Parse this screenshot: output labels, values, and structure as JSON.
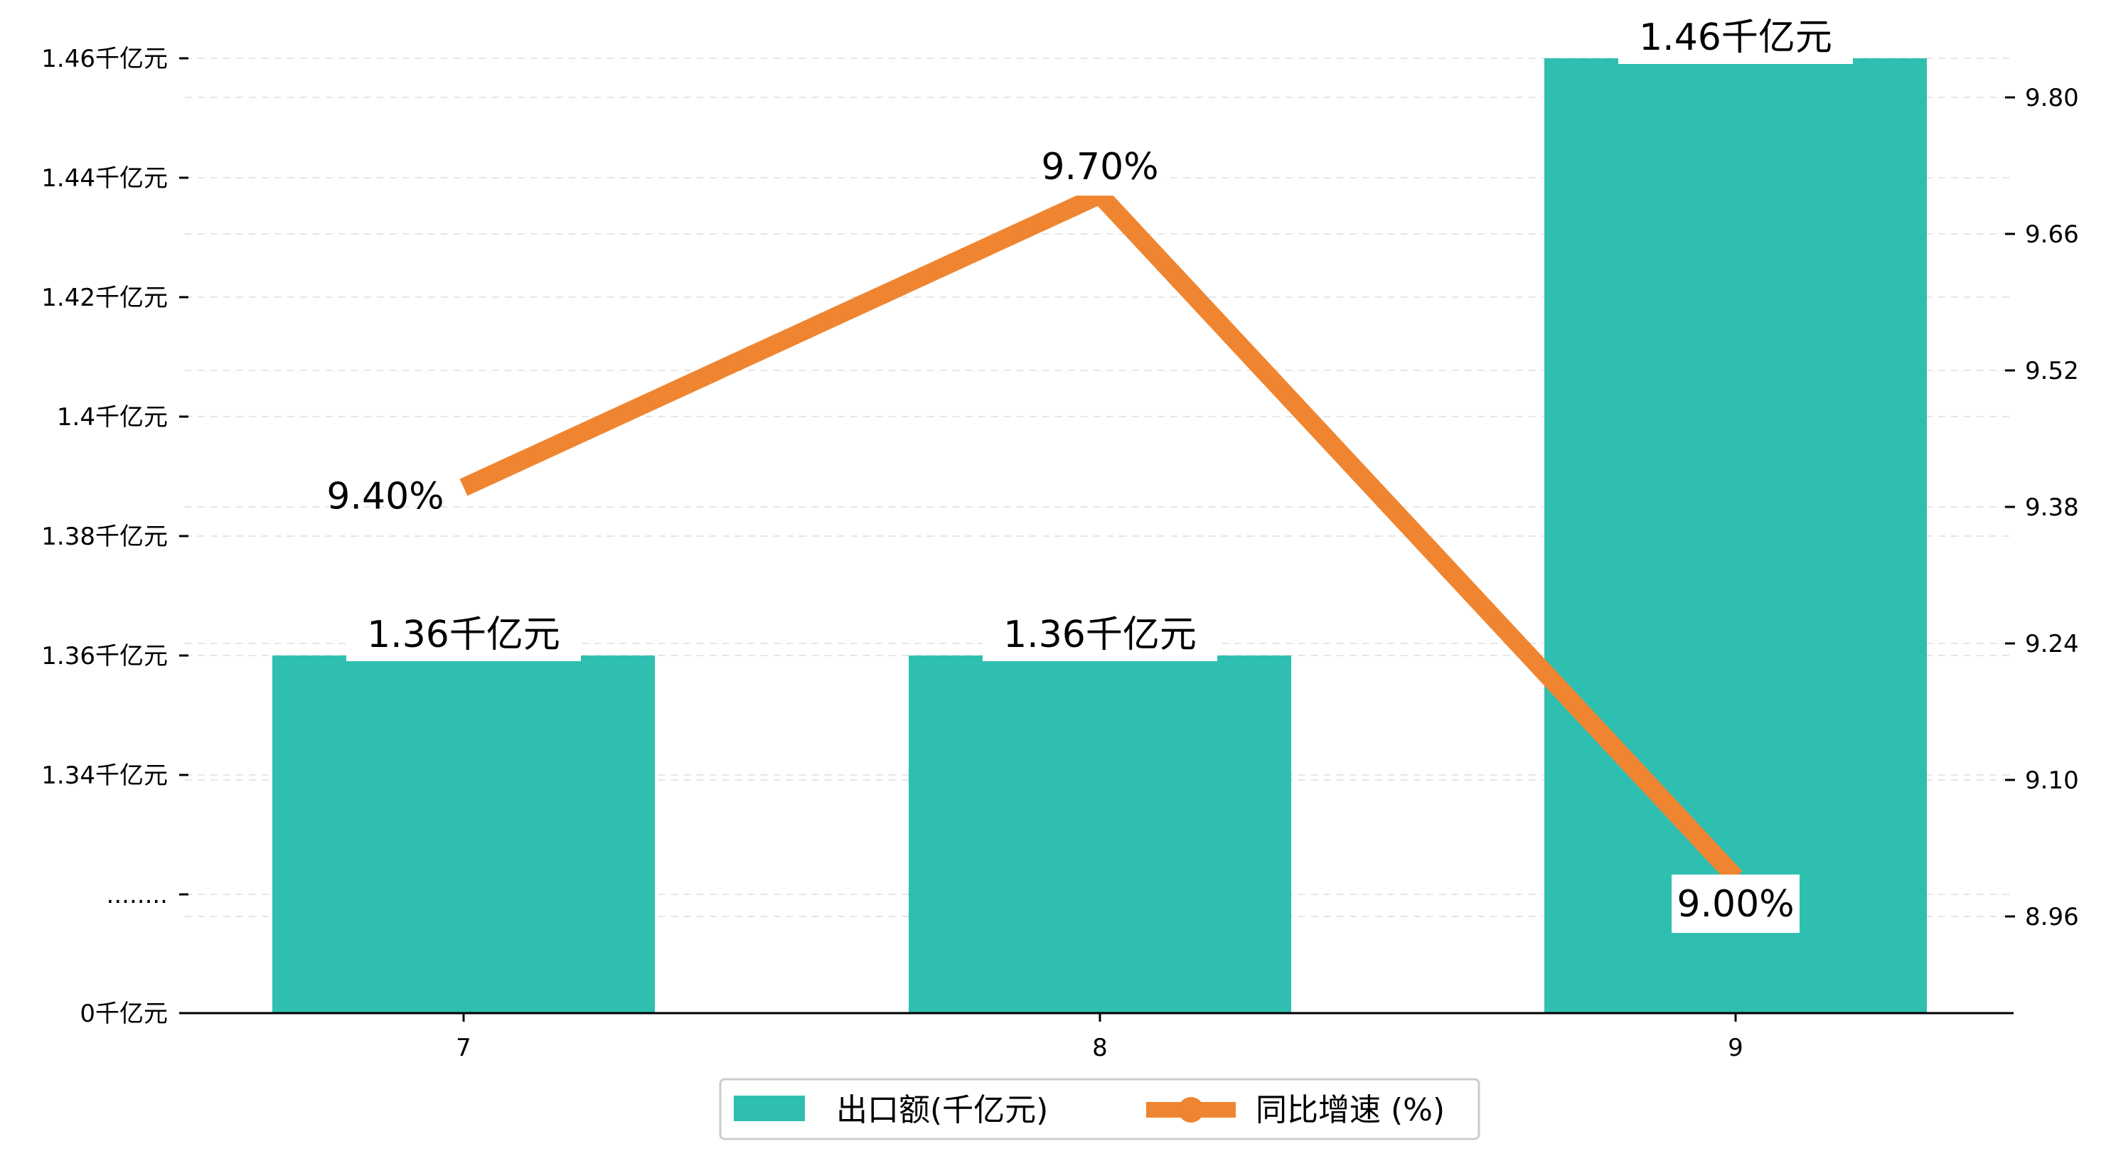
{
  "chart_data": {
    "type": "bar",
    "categories": [
      "7",
      "8",
      "9"
    ],
    "left_axis": {
      "ticks": [
        {
          "value": 0,
          "label": "0千亿元"
        },
        {
          "value": 1.32,
          "label": "........"
        },
        {
          "value": 1.34,
          "label": "1.34千亿元"
        },
        {
          "value": 1.36,
          "label": "1.36千亿元"
        },
        {
          "value": 1.38,
          "label": "1.38千亿元"
        },
        {
          "value": 1.4,
          "label": "1.4千亿元"
        },
        {
          "value": 1.42,
          "label": "1.42千亿元"
        },
        {
          "value": 1.44,
          "label": "1.44千亿元"
        },
        {
          "value": 1.46,
          "label": "1.46千亿元"
        }
      ],
      "break": true
    },
    "right_axis": {
      "ylim": [
        8.85,
        9.88
      ],
      "ticks": [
        {
          "value": 8.96,
          "label": "8.96"
        },
        {
          "value": 9.1,
          "label": "9.10"
        },
        {
          "value": 9.24,
          "label": "9.24"
        },
        {
          "value": 9.38,
          "label": "9.38"
        },
        {
          "value": 9.52,
          "label": "9.52"
        },
        {
          "value": 9.66,
          "label": "9.66"
        },
        {
          "value": 9.8,
          "label": "9.80"
        }
      ]
    },
    "grid": "horizontal-dashed",
    "legend_position": "bottom-center",
    "series": [
      {
        "name": "出口额(千亿元)",
        "type": "bar",
        "axis": "left",
        "color": "#2fbfb1",
        "values": [
          1.36,
          1.36,
          1.46
        ],
        "labels": [
          "1.36千亿元",
          "1.36千亿元",
          "1.46千亿元"
        ]
      },
      {
        "name": "同比增速 (%)",
        "type": "line",
        "axis": "right",
        "color": "#ef8530",
        "values": [
          9.4,
          9.7,
          9.0
        ],
        "labels": [
          "9.40%",
          "9.70%",
          "9.00%"
        ]
      }
    ]
  }
}
